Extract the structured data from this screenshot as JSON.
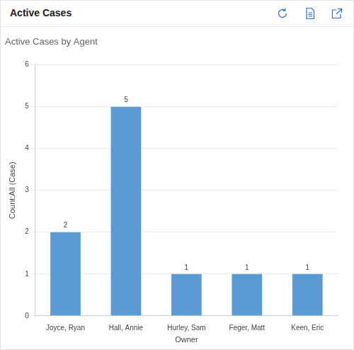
{
  "panel": {
    "title": "Active Cases"
  },
  "chart_data": {
    "type": "bar",
    "title": "Active Cases by Agent",
    "x_label": "Owner",
    "y_label": "Count:All (Case)",
    "categories": [
      "Joyce, Ryan",
      "Hall, Annie",
      "Hurley, Sam",
      "Feger, Matt",
      "Keen, Eric"
    ],
    "values": [
      2,
      5,
      1,
      1,
      1
    ],
    "color": "#5b9bd5",
    "ylim": [
      0,
      6
    ],
    "yticks": [
      0,
      1,
      2,
      3,
      4,
      5,
      6
    ],
    "grid": true,
    "data_labels": true
  }
}
